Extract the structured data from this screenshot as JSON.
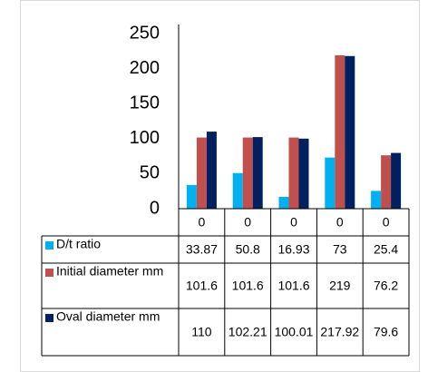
{
  "chart_data": {
    "type": "bar",
    "categories": [
      "0",
      "0",
      "0",
      "0",
      "0"
    ],
    "series": [
      {
        "name": "D/t ratio",
        "color": "#00b0f0",
        "values": [
          33.87,
          50.8,
          16.93,
          73,
          25.4
        ]
      },
      {
        "name": "Initial diameter mm",
        "color": "#c0504d",
        "values": [
          101.6,
          101.6,
          101.6,
          219,
          76.2
        ]
      },
      {
        "name": "Oval diameter mm",
        "color": "#002060",
        "values": [
          110,
          102.21,
          100.01,
          217.92,
          79.6
        ]
      }
    ],
    "ylim": [
      0,
      250
    ],
    "yticks": [
      0,
      50,
      100,
      150,
      200,
      250
    ],
    "grid": false
  }
}
